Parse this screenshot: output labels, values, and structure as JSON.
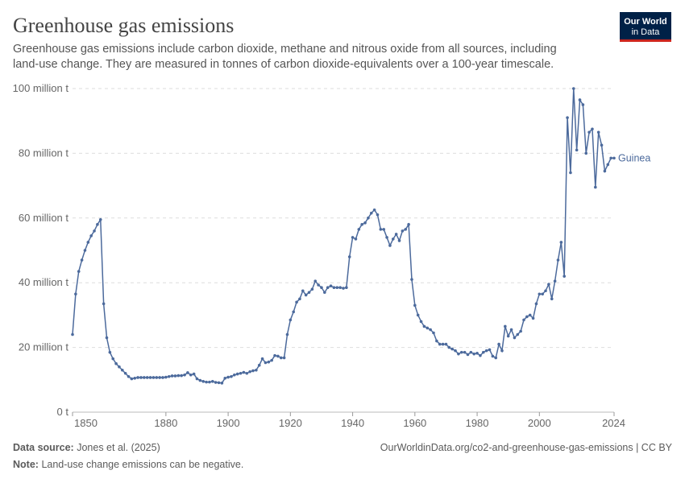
{
  "chart_data": {
    "type": "line",
    "title": "Greenhouse gas emissions",
    "subtitle_lines": [
      "Greenhouse gas emissions include carbon dioxide, methane and nitrous oxide from all sources, including",
      "land-use change. They are measured in tonnes of carbon dioxide-equivalents over a 100-year timescale."
    ],
    "logo": [
      "Our World",
      "in Data"
    ],
    "x": [
      1850,
      1851,
      1852,
      1853,
      1854,
      1855,
      1856,
      1857,
      1858,
      1859,
      1860,
      1861,
      1862,
      1863,
      1864,
      1865,
      1866,
      1867,
      1868,
      1869,
      1870,
      1871,
      1872,
      1873,
      1874,
      1875,
      1876,
      1877,
      1878,
      1879,
      1880,
      1881,
      1882,
      1883,
      1884,
      1885,
      1886,
      1887,
      1888,
      1889,
      1890,
      1891,
      1892,
      1893,
      1894,
      1895,
      1896,
      1897,
      1898,
      1899,
      1900,
      1901,
      1902,
      1903,
      1904,
      1905,
      1906,
      1907,
      1908,
      1909,
      1910,
      1911,
      1912,
      1913,
      1914,
      1915,
      1916,
      1917,
      1918,
      1919,
      1920,
      1921,
      1922,
      1923,
      1924,
      1925,
      1926,
      1927,
      1928,
      1929,
      1930,
      1931,
      1932,
      1933,
      1934,
      1935,
      1936,
      1937,
      1938,
      1939,
      1940,
      1941,
      1942,
      1943,
      1944,
      1945,
      1946,
      1947,
      1948,
      1949,
      1950,
      1951,
      1952,
      1953,
      1954,
      1955,
      1956,
      1957,
      1958,
      1959,
      1960,
      1961,
      1962,
      1963,
      1964,
      1965,
      1966,
      1967,
      1968,
      1969,
      1970,
      1971,
      1972,
      1973,
      1974,
      1975,
      1976,
      1977,
      1978,
      1979,
      1980,
      1981,
      1982,
      1983,
      1984,
      1985,
      1986,
      1987,
      1988,
      1989,
      1990,
      1991,
      1992,
      1993,
      1994,
      1995,
      1996,
      1997,
      1998,
      1999,
      2000,
      2001,
      2002,
      2003,
      2004,
      2005,
      2006,
      2007,
      2008,
      2009,
      2010,
      2011,
      2012,
      2013,
      2014,
      2015,
      2016,
      2017,
      2018,
      2019,
      2020,
      2021,
      2022,
      2023,
      2024
    ],
    "series": [
      {
        "name": "Guinea",
        "color": "#4c6a9c",
        "values": [
          24,
          36.5,
          43.5,
          47,
          50,
          52.5,
          54.5,
          56,
          58,
          59.5,
          33.5,
          23,
          18.5,
          16.5,
          15,
          14,
          13,
          12,
          11,
          10.3,
          10.5,
          10.7,
          10.7,
          10.7,
          10.7,
          10.7,
          10.7,
          10.7,
          10.7,
          10.7,
          10.8,
          11,
          11.2,
          11.2,
          11.3,
          11.3,
          11.5,
          12.2,
          11.5,
          11.8,
          10.3,
          9.8,
          9.5,
          9.3,
          9.3,
          9.5,
          9.2,
          9.1,
          9,
          10.5,
          10.8,
          11,
          11.5,
          11.8,
          12,
          12.3,
          12,
          12.5,
          12.8,
          13,
          14.5,
          16.5,
          15.3,
          15.5,
          16,
          17.5,
          17.3,
          16.8,
          16.8,
          24,
          28.5,
          31,
          34,
          35,
          37.5,
          36.2,
          37,
          38,
          40.5,
          39.3,
          38.5,
          37,
          38.5,
          39,
          38.5,
          38.5,
          38.5,
          38.3,
          38.5,
          48,
          54,
          53.5,
          56.5,
          58,
          58.5,
          60,
          61.5,
          62.5,
          61,
          56.5,
          56.5,
          54,
          51.5,
          53.5,
          55,
          53,
          56,
          56.5,
          58,
          41,
          33,
          30,
          28,
          26.5,
          26,
          25.5,
          24.5,
          22,
          21,
          21,
          21,
          20,
          19.5,
          19,
          18,
          18.5,
          18.5,
          17.8,
          18.5,
          18,
          18.2,
          17.5,
          18.5,
          19,
          19.3,
          17.3,
          16.8,
          21,
          19,
          26.5,
          23.5,
          25.5,
          23,
          24,
          25,
          28.5,
          29.5,
          30,
          29,
          33.5,
          36.5,
          36.5,
          37.5,
          39.5,
          35,
          40.5,
          47,
          52.5,
          42,
          91,
          74,
          100,
          81,
          96.5,
          95,
          80,
          86.5,
          87.5,
          69.5,
          86.5,
          82.5,
          74.5,
          76.5,
          78.5,
          78.5
        ]
      }
    ],
    "xlim": [
      1850,
      2024
    ],
    "xticks": [
      1850,
      1880,
      1900,
      1920,
      1940,
      1960,
      1980,
      2000,
      2024
    ],
    "ylim": [
      0,
      100
    ],
    "yticks": [
      {
        "value": 0,
        "label": "0 t"
      },
      {
        "value": 20,
        "label": "20 million t"
      },
      {
        "value": 40,
        "label": "40 million t"
      },
      {
        "value": 60,
        "label": "60 million t"
      },
      {
        "value": 80,
        "label": "80 million t"
      },
      {
        "value": 100,
        "label": "100 million t"
      }
    ],
    "grid": true,
    "footer": {
      "source_label": "Data source:",
      "source": "Jones et al. (2025)",
      "url": "OurWorldinData.org/co2-and-greenhouse-gas-emissions | CC BY",
      "note_label": "Note:",
      "note": "Land-use change emissions can be negative."
    }
  }
}
